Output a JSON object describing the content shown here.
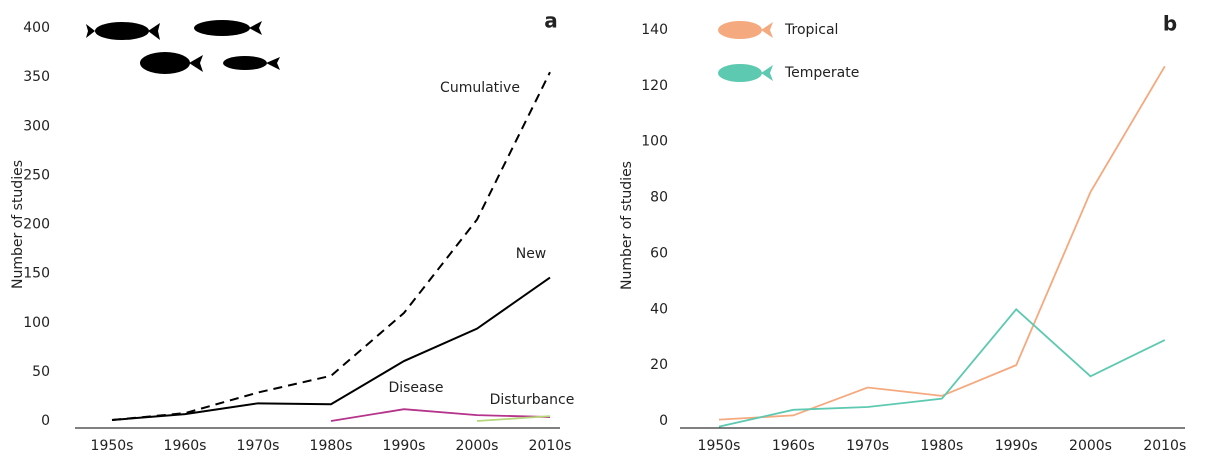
{
  "chart_data": [
    {
      "type": "line",
      "panel_label": "a",
      "y_label": "Number of studies",
      "categories": [
        "1950s",
        "1960s",
        "1970s",
        "1980s",
        "1990s",
        "2000s",
        "2010s"
      ],
      "ylim": [
        0,
        400
      ],
      "yticks": [
        0,
        50,
        100,
        150,
        200,
        250,
        300,
        350,
        400
      ],
      "series": [
        {
          "name": "Cumulative",
          "color": "#000000",
          "dash": true,
          "values": [
            1,
            8,
            29,
            46,
            110,
            205,
            355
          ]
        },
        {
          "name": "New",
          "color": "#000000",
          "values": [
            1,
            7,
            18,
            17,
            61,
            94,
            146
          ]
        },
        {
          "name": "Disease",
          "color": "#b5338a",
          "values": [
            null,
            null,
            null,
            0,
            12,
            6,
            4
          ]
        },
        {
          "name": "Disturbance",
          "color": "#b5d67a",
          "values": [
            null,
            null,
            null,
            null,
            null,
            0,
            5
          ]
        }
      ]
    },
    {
      "type": "line",
      "panel_label": "b",
      "y_label": "Number of studies",
      "categories": [
        "1950s",
        "1960s",
        "1970s",
        "1980s",
        "1990s",
        "2000s",
        "2010s"
      ],
      "ylim": [
        0,
        140
      ],
      "yticks": [
        0,
        20,
        40,
        60,
        80,
        100,
        120,
        140
      ],
      "legend": "top-left",
      "series": [
        {
          "name": "Tropical",
          "color": "#f5a97f",
          "values": [
            0.5,
            2,
            12,
            9,
            20,
            82,
            127
          ]
        },
        {
          "name": "Temperate",
          "color": "#5dc9b1",
          "values": [
            -2,
            4,
            5,
            8,
            40,
            16,
            29
          ]
        }
      ]
    }
  ]
}
